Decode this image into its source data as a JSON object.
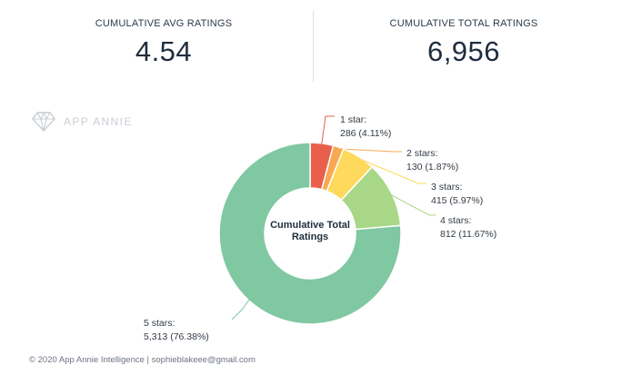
{
  "kpis": {
    "avg": {
      "label": "CUMULATIVE AVG RATINGS",
      "value": "4.54"
    },
    "total": {
      "label": "CUMULATIVE TOTAL RATINGS",
      "value": "6,956"
    }
  },
  "watermark": {
    "text": "APP ANNIE",
    "icon": "diamond-logo-icon"
  },
  "chart_data": {
    "type": "pie",
    "center_label": [
      "Cumulative Total",
      "Ratings"
    ],
    "slices": [
      {
        "label_line1": "1 star:",
        "label_line2": "286 (4.11%)",
        "value": 286,
        "percent": 4.11,
        "color": "#e8604c"
      },
      {
        "label_line1": "2 stars:",
        "label_line2": "130 (1.87%)",
        "value": 130,
        "percent": 1.87,
        "color": "#f7a851"
      },
      {
        "label_line1": "3 stars:",
        "label_line2": "415 (5.97%)",
        "value": 415,
        "percent": 5.97,
        "color": "#fed95c"
      },
      {
        "label_line1": "4 stars:",
        "label_line2": "812 (11.67%)",
        "value": 812,
        "percent": 11.67,
        "color": "#a8d887"
      },
      {
        "label_line1": "5 stars:",
        "label_line2": "5,313 (76.38%)",
        "value": 5313,
        "percent": 76.38,
        "color": "#7fc8a1"
      }
    ]
  },
  "footer": {
    "text": "© 2020 App Annie Intelligence | sophieblakeee@gmail.com"
  }
}
